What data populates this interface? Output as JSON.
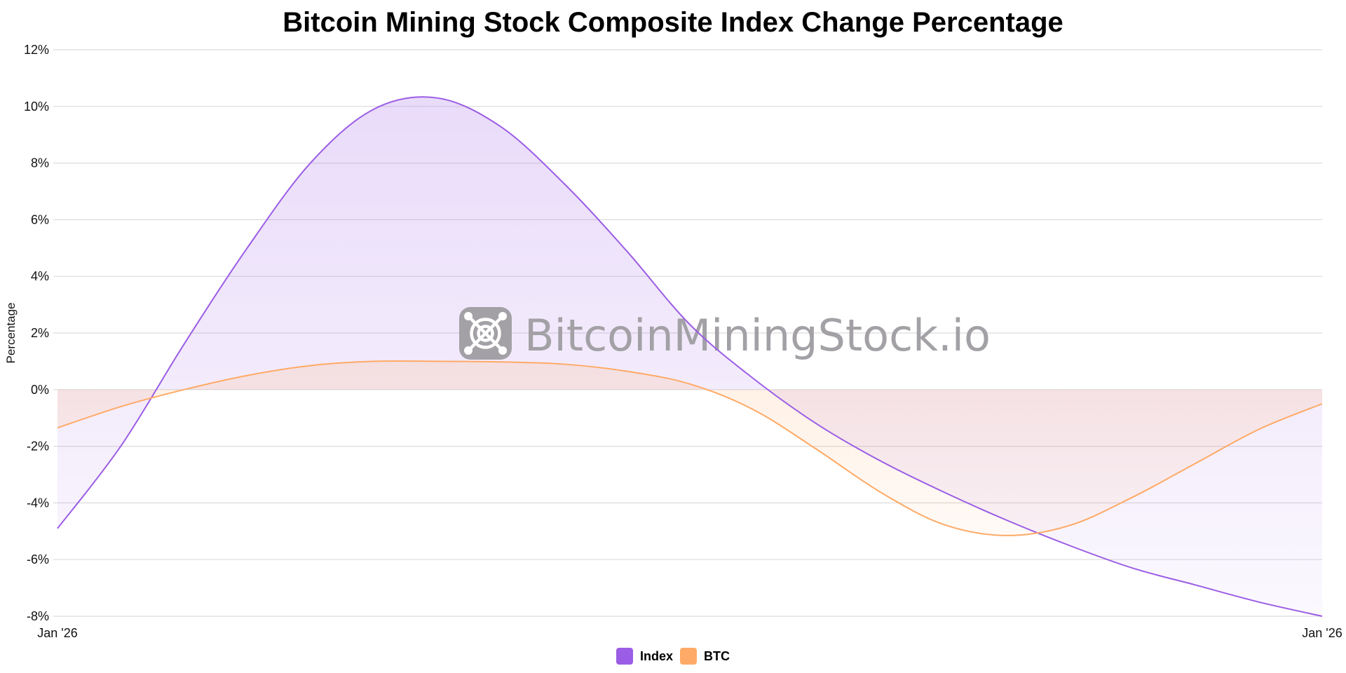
{
  "chart_data": {
    "type": "area",
    "title": "Bitcoin Mining Stock Composite Index Change Percentage",
    "xlabel": "",
    "ylabel": "Percentage",
    "ylim": [
      -8,
      12
    ],
    "yticks": [
      12,
      10,
      8,
      6,
      4,
      2,
      0,
      -2,
      -4,
      -6,
      -8
    ],
    "ytick_labels": [
      "12%",
      "10%",
      "8%",
      "6%",
      "4%",
      "2%",
      "0%",
      "-2%",
      "-4%",
      "-6%",
      "-8%"
    ],
    "xtick_labels": [
      "Jan '26",
      "Jan '26"
    ],
    "x": [
      0,
      0.05,
      0.1,
      0.15,
      0.2,
      0.25,
      0.3,
      0.35,
      0.4,
      0.45,
      0.5,
      0.55,
      0.6,
      0.65,
      0.7,
      0.75,
      0.8,
      0.85,
      0.9,
      0.95,
      1.0
    ],
    "xlim": [
      0,
      1
    ],
    "grid": true,
    "legend_position": "bottom-center",
    "series": [
      {
        "name": "Index",
        "color": "#9b5de5",
        "values": [
          -4.9,
          -2.0,
          1.6,
          5.0,
          8.0,
          9.9,
          10.3,
          9.3,
          7.3,
          4.9,
          2.3,
          0.4,
          -1.2,
          -2.5,
          -3.6,
          -4.6,
          -5.5,
          -6.3,
          -6.9,
          -7.5,
          -8.0
        ]
      },
      {
        "name": "BTC",
        "color": "#ffaa66",
        "values": [
          -1.35,
          -0.6,
          0.0,
          0.5,
          0.85,
          1.0,
          1.0,
          0.98,
          0.9,
          0.65,
          0.2,
          -0.7,
          -2.1,
          -3.6,
          -4.75,
          -5.15,
          -4.8,
          -3.8,
          -2.6,
          -1.4,
          -0.5
        ]
      }
    ]
  },
  "watermark": {
    "text": "BitcoinMiningStock.io",
    "icon": "mining-fan-icon"
  }
}
